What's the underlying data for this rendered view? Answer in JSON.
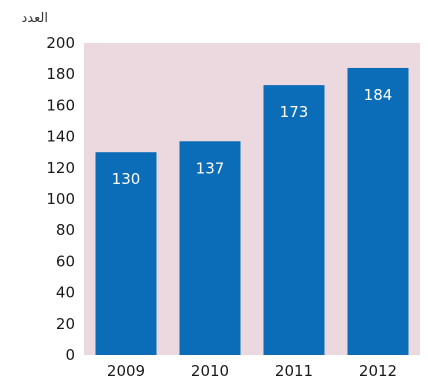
{
  "chart_data": {
    "type": "bar",
    "title": "",
    "ylabel": "العدد",
    "xlabel": "",
    "categories": [
      "2009",
      "2010",
      "2011",
      "2012"
    ],
    "values": [
      130,
      137,
      173,
      184
    ],
    "ylim": [
      0,
      200
    ],
    "yticks": [
      0,
      20,
      40,
      60,
      80,
      100,
      120,
      140,
      160,
      180,
      200
    ],
    "grid": false,
    "colors": {
      "bar": "#0b6db7",
      "plot_background": "#ecd9df",
      "label": "#ffffff"
    }
  }
}
